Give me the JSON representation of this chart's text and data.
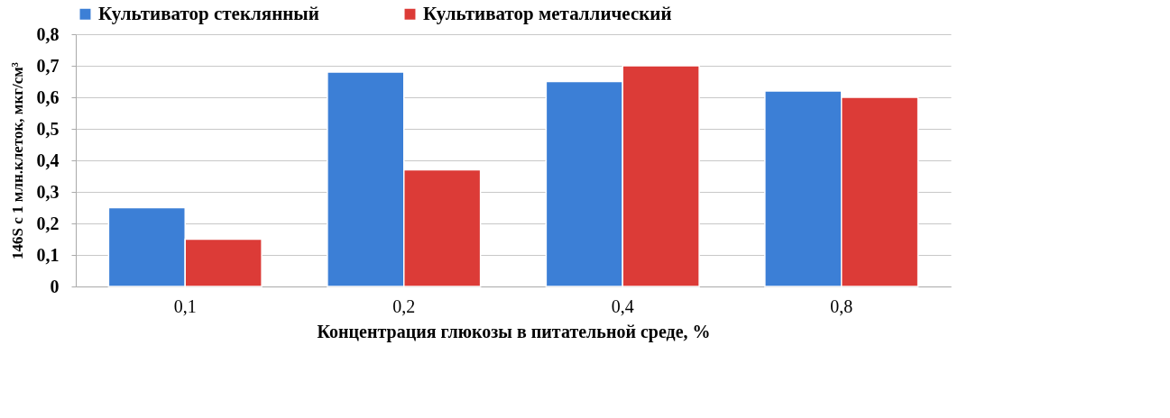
{
  "chart_data": {
    "type": "bar",
    "xlabel": "Концентрация глюкозы в питательной среде, %",
    "ylabel": "146S с 1 млн.клеток, мкг/см³",
    "categories": [
      "0,1",
      "0,2",
      "0,4",
      "0,8"
    ],
    "series": [
      {
        "name": "Культиватор стеклянный",
        "color": "#3c7fd6",
        "values": [
          0.25,
          0.68,
          0.65,
          0.62
        ]
      },
      {
        "name": "Культиватор металлический",
        "color": "#dc3b37",
        "values": [
          0.15,
          0.37,
          0.7,
          0.6
        ]
      }
    ],
    "ylim": [
      0,
      0.8
    ],
    "yticks": [
      {
        "value": 0,
        "label": "0"
      },
      {
        "value": 0.1,
        "label": "0,1"
      },
      {
        "value": 0.2,
        "label": "0,2"
      },
      {
        "value": 0.3,
        "label": "0,3"
      },
      {
        "value": 0.4,
        "label": "0,4"
      },
      {
        "value": 0.5,
        "label": "0,5"
      },
      {
        "value": 0.6,
        "label": "0,6"
      },
      {
        "value": 0.7,
        "label": "0,7"
      },
      {
        "value": 0.8,
        "label": "0,8"
      }
    ],
    "grid": "y",
    "legend": "top"
  }
}
